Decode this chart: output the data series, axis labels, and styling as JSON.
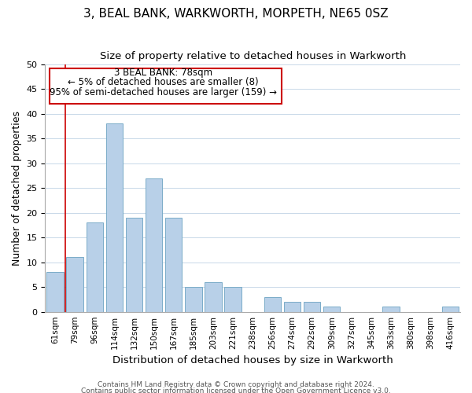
{
  "title": "3, BEAL BANK, WARKWORTH, MORPETH, NE65 0SZ",
  "subtitle": "Size of property relative to detached houses in Warkworth",
  "xlabel": "Distribution of detached houses by size in Warkworth",
  "ylabel": "Number of detached properties",
  "bar_labels": [
    "61sqm",
    "79sqm",
    "96sqm",
    "114sqm",
    "132sqm",
    "150sqm",
    "167sqm",
    "185sqm",
    "203sqm",
    "221sqm",
    "238sqm",
    "256sqm",
    "274sqm",
    "292sqm",
    "309sqm",
    "327sqm",
    "345sqm",
    "363sqm",
    "380sqm",
    "398sqm",
    "416sqm"
  ],
  "bar_values": [
    8,
    11,
    18,
    38,
    19,
    27,
    19,
    5,
    6,
    5,
    0,
    3,
    2,
    2,
    1,
    0,
    0,
    1,
    0,
    0,
    1
  ],
  "bar_color": "#b8d0e8",
  "bar_edge_color": "#7aacc8",
  "annotation_box_edge": "#cc0000",
  "annotation_line_color": "#cc0000",
  "annotation_text_line1": "3 BEAL BANK: 78sqm",
  "annotation_text_line2": "← 5% of detached houses are smaller (8)",
  "annotation_text_line3": "95% of semi-detached houses are larger (159) →",
  "ylim": [
    0,
    50
  ],
  "yticks": [
    0,
    5,
    10,
    15,
    20,
    25,
    30,
    35,
    40,
    45,
    50
  ],
  "vline_x": 0.5,
  "footer_line1": "Contains HM Land Registry data © Crown copyright and database right 2024.",
  "footer_line2": "Contains public sector information licensed under the Open Government Licence v3.0.",
  "background_color": "#ffffff",
  "grid_color": "#c8d8e8"
}
